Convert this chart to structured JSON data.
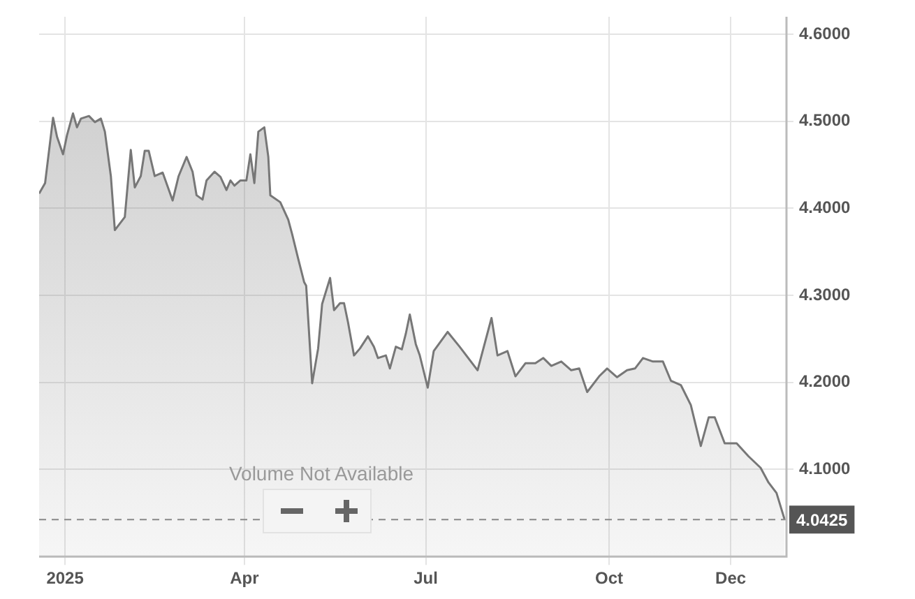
{
  "chart_data": {
    "type": "area",
    "x": [
      "2024-12-19",
      "2024-12-22",
      "2024-12-26",
      "2024-12-28",
      "2024-12-31",
      "2025-01-02",
      "2025-01-05",
      "2025-01-07",
      "2025-01-09",
      "2025-01-13",
      "2025-01-16",
      "2025-01-19",
      "2025-01-21",
      "2025-01-24",
      "2025-01-26",
      "2025-01-30",
      "2025-01-31",
      "2025-02-03",
      "2025-02-05",
      "2025-02-08",
      "2025-02-10",
      "2025-02-12",
      "2025-02-15",
      "2025-02-19",
      "2025-02-24",
      "2025-02-27",
      "2025-03-03",
      "2025-03-06",
      "2025-03-08",
      "2025-03-11",
      "2025-03-13",
      "2025-03-17",
      "2025-03-20",
      "2025-03-23",
      "2025-03-25",
      "2025-03-27",
      "2025-03-30",
      "2025-04-02",
      "2025-04-04",
      "2025-04-06",
      "2025-04-08",
      "2025-04-11",
      "2025-04-13",
      "2025-04-14",
      "2025-04-19",
      "2025-04-23",
      "2025-04-25",
      "2025-04-28",
      "2025-05-01",
      "2025-05-02",
      "2025-05-05",
      "2025-05-08",
      "2025-05-10",
      "2025-05-14",
      "2025-05-16",
      "2025-05-19",
      "2025-05-21",
      "2025-05-23",
      "2025-05-26",
      "2025-05-29",
      "2025-06-02",
      "2025-06-05",
      "2025-06-07",
      "2025-06-11",
      "2025-06-13",
      "2025-06-16",
      "2025-06-19",
      "2025-06-21",
      "2025-06-23",
      "2025-06-26",
      "2025-06-28",
      "2025-07-02",
      "2025-07-05",
      "2025-07-12",
      "2025-07-18",
      "2025-07-27",
      "2025-08-03",
      "2025-08-06",
      "2025-08-11",
      "2025-08-15",
      "2025-08-20",
      "2025-08-25",
      "2025-08-29",
      "2025-09-02",
      "2025-09-07",
      "2025-09-12",
      "2025-09-16",
      "2025-09-20",
      "2025-09-26",
      "2025-09-30",
      "2025-10-05",
      "2025-10-10",
      "2025-10-14",
      "2025-10-18",
      "2025-10-23",
      "2025-10-28",
      "2025-11-01",
      "2025-11-06",
      "2025-11-11",
      "2025-11-16",
      "2025-11-20",
      "2025-11-23",
      "2025-11-28",
      "2025-12-04",
      "2025-12-10",
      "2025-12-16",
      "2025-12-20",
      "2025-12-24",
      "2025-12-28"
    ],
    "series": [
      {
        "color": "#777777",
        "values": [
          4.417,
          4.429,
          4.504,
          4.482,
          4.462,
          4.484,
          4.509,
          4.493,
          4.503,
          4.506,
          4.499,
          4.503,
          4.488,
          4.437,
          4.375,
          4.387,
          4.39,
          4.467,
          4.424,
          4.437,
          4.466,
          4.466,
          4.437,
          4.441,
          4.409,
          4.437,
          4.459,
          4.442,
          4.415,
          4.41,
          4.432,
          4.442,
          4.436,
          4.421,
          4.432,
          4.426,
          4.432,
          4.432,
          4.462,
          4.429,
          4.488,
          4.493,
          4.459,
          4.415,
          4.407,
          4.387,
          4.37,
          4.342,
          4.315,
          4.311,
          4.199,
          4.239,
          4.29,
          4.32,
          4.283,
          4.291,
          4.291,
          4.269,
          4.231,
          4.239,
          4.253,
          4.241,
          4.228,
          4.231,
          4.216,
          4.241,
          4.238,
          4.256,
          4.278,
          4.244,
          4.231,
          4.194,
          4.236,
          4.258,
          4.241,
          4.214,
          4.274,
          4.231,
          4.236,
          4.207,
          4.222,
          4.222,
          4.228,
          4.219,
          4.224,
          4.214,
          4.216,
          4.189,
          4.207,
          4.216,
          4.206,
          4.214,
          4.216,
          4.228,
          4.224,
          4.224,
          4.202,
          4.197,
          4.174,
          4.127,
          4.16,
          4.16,
          4.13,
          4.13,
          4.115,
          4.102,
          4.085,
          4.073,
          4.043
        ]
      }
    ],
    "xlim": [
      "2024-12-19",
      "2025-12-29"
    ],
    "xticks": [
      {
        "value": "2025-01-01",
        "label": "2025"
      },
      {
        "value": "2025-04-01",
        "label": "Apr"
      },
      {
        "value": "2025-07-01",
        "label": "Jul"
      },
      {
        "value": "2025-10-01",
        "label": "Oct"
      },
      {
        "value": "2025-12-01",
        "label": "Dec"
      }
    ],
    "ylim": [
      4.0,
      4.62
    ],
    "yticks": [
      {
        "value": 4.1,
        "label": "4.1000"
      },
      {
        "value": 4.2,
        "label": "4.2000"
      },
      {
        "value": 4.3,
        "label": "4.3000"
      },
      {
        "value": 4.4,
        "label": "4.4000"
      },
      {
        "value": 4.5,
        "label": "4.5000"
      },
      {
        "value": 4.6,
        "label": "4.6000"
      }
    ],
    "grid": true,
    "legend": false,
    "ref_lines": [
      {
        "axis": "y",
        "value": 4.0425,
        "label": "4.0425",
        "line_style": "dashed",
        "color": "#888888"
      }
    ],
    "annotations": [
      "Volume Not Available"
    ]
  }
}
